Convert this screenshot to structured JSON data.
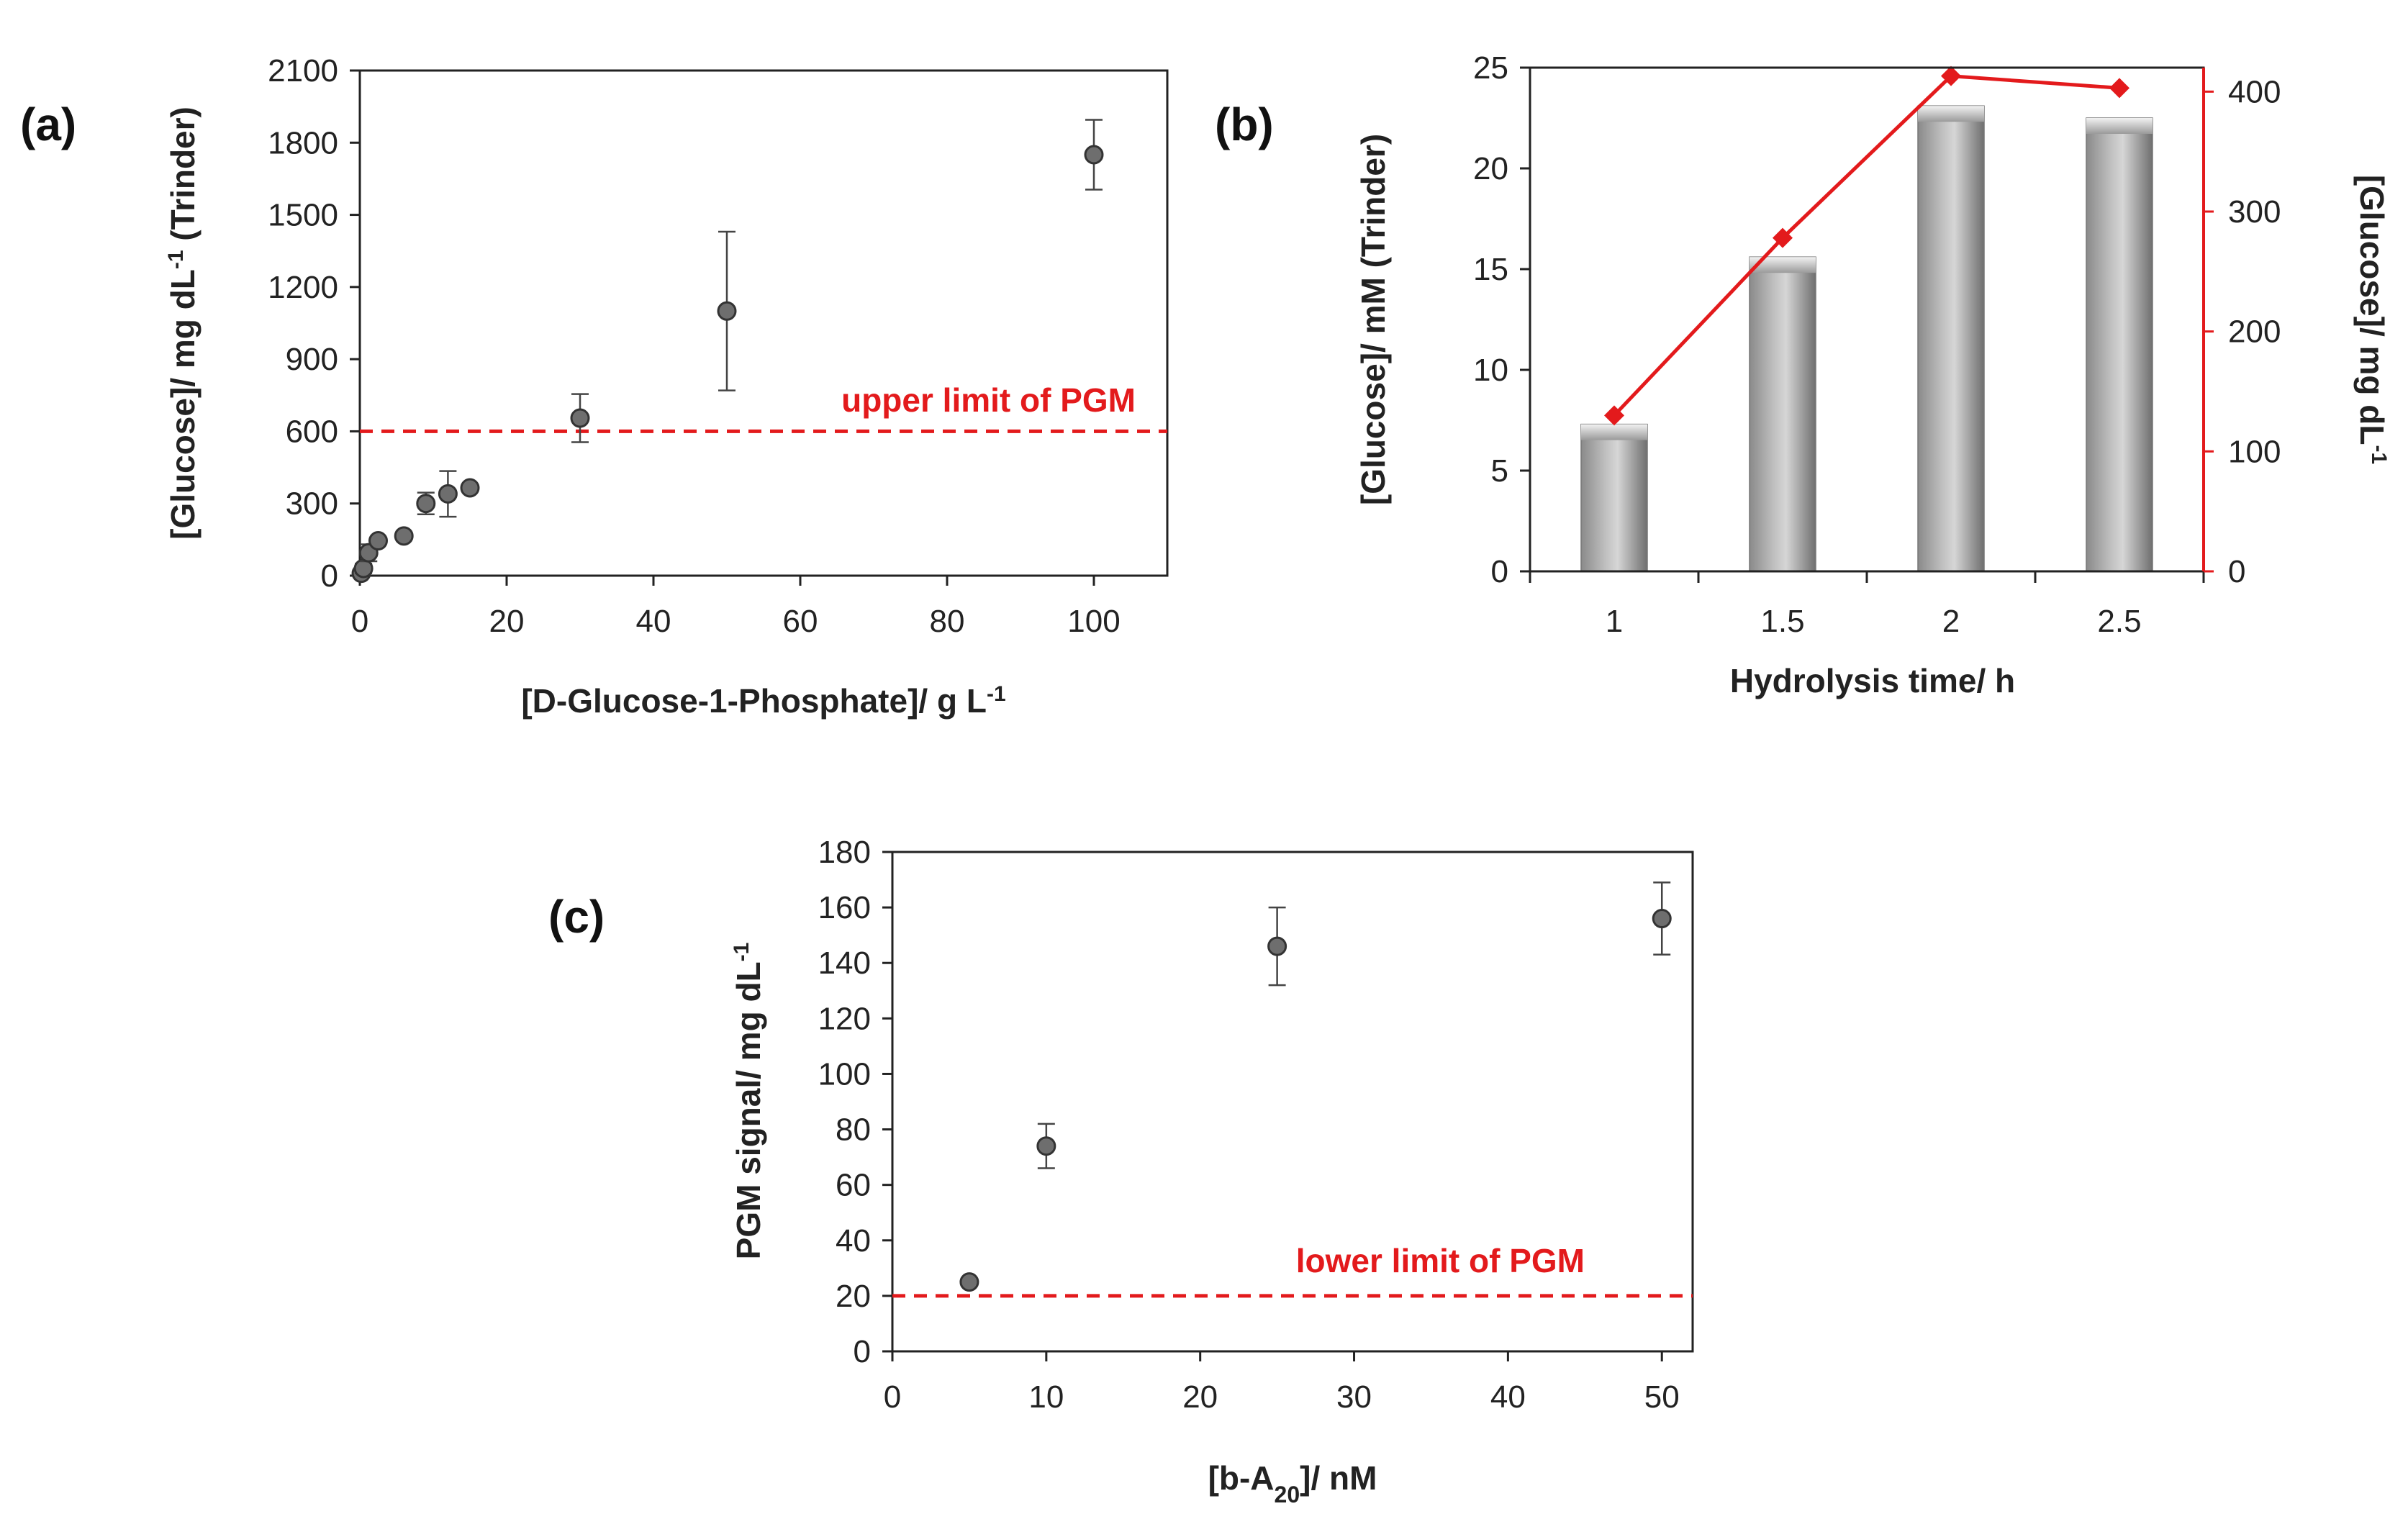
{
  "figure": {
    "colors": {
      "axis": "#222222",
      "marker": "#6e6e6e",
      "marker_edge": "#333333",
      "reference": "#e31a1c",
      "line_red": "#e31a1c",
      "bar_dark": "#8c8c8c",
      "bar_light": "#e0e0e0"
    }
  },
  "chart_data": [
    {
      "id": "a",
      "panel_label": "(a)",
      "type": "scatter",
      "title": "",
      "xlabel": "[D-Glucose-1-Phosphate]/ g L",
      "xlabel_sup": "-1",
      "ylabel": "[Glucose]/  mg dL",
      "ylabel_sup": "-1",
      "ylabel_tail": " (Trinder)",
      "xlim": [
        0,
        110
      ],
      "ylim": [
        0,
        2100
      ],
      "xticks": [
        0,
        20,
        40,
        60,
        80,
        100
      ],
      "yticks": [
        0,
        300,
        600,
        900,
        1200,
        1500,
        1800,
        2100
      ],
      "xtick_labels": [
        "0",
        "20",
        "40",
        "60",
        "80",
        "100"
      ],
      "ytick_labels": [
        "0",
        "300",
        "600",
        "900",
        "1200",
        "1500",
        "1800",
        "2100"
      ],
      "points": [
        {
          "x": 0.2,
          "y": 10,
          "err": 15
        },
        {
          "x": 0.5,
          "y": 30,
          "err": 20
        },
        {
          "x": 1.2,
          "y": 95,
          "err": 35
        },
        {
          "x": 2.5,
          "y": 145,
          "err": 0
        },
        {
          "x": 6,
          "y": 165,
          "err": 0
        },
        {
          "x": 9,
          "y": 300,
          "err": 45
        },
        {
          "x": 12,
          "y": 340,
          "err": 95
        },
        {
          "x": 15,
          "y": 365,
          "err": 0
        },
        {
          "x": 30,
          "y": 655,
          "err": 100
        },
        {
          "x": 50,
          "y": 1100,
          "err": 330
        },
        {
          "x": 100,
          "y": 1750,
          "err": 145
        }
      ],
      "reference_line": {
        "y": 600,
        "label": "upper limit of PGM",
        "style": "dashed"
      }
    },
    {
      "id": "b",
      "panel_label": "(b)",
      "type": "bar",
      "title": "",
      "xlabel": "Hydrolysis time/ h",
      "ylabel": "[Glucose]/ mM (Trinder)",
      "ylabel_right": "[Glucose]/ mg dL",
      "ylabel_right_sup": "-1",
      "categories": [
        "1",
        "1.5",
        "2",
        "2.5"
      ],
      "ylim": [
        0,
        25
      ],
      "ylim_right": [
        0,
        420
      ],
      "yticks": [
        0,
        5,
        10,
        15,
        20,
        25
      ],
      "ytick_labels": [
        "0",
        "5",
        "10",
        "15",
        "20",
        "25"
      ],
      "yticks_right": [
        0,
        100,
        200,
        300,
        400
      ],
      "ytick_labels_right": [
        "0",
        "100",
        "200",
        "300",
        "400"
      ],
      "series": [
        {
          "name": "[Glucose] mM (Trinder)",
          "type": "bar",
          "axis": "left",
          "values": [
            7.3,
            15.6,
            23.1,
            22.5
          ]
        },
        {
          "name": "[Glucose] mg dL-1",
          "type": "line",
          "axis": "right",
          "marker": "diamond",
          "values": [
            130,
            278,
            413,
            403
          ]
        }
      ]
    },
    {
      "id": "c",
      "panel_label": "(c)",
      "type": "scatter",
      "title": "",
      "xlabel": "[b-A",
      "xlabel_sub": "20",
      "xlabel_tail": "]/  nM",
      "ylabel": "PGM signal/ mg dL",
      "ylabel_sup": "-1",
      "xlim": [
        0,
        52
      ],
      "ylim": [
        0,
        180
      ],
      "xticks": [
        0,
        10,
        20,
        30,
        40,
        50
      ],
      "yticks": [
        0,
        20,
        40,
        60,
        80,
        100,
        120,
        140,
        160,
        180
      ],
      "xtick_labels": [
        "0",
        "10",
        "20",
        "30",
        "40",
        "50"
      ],
      "ytick_labels": [
        "0",
        "20",
        "40",
        "60",
        "80",
        "100",
        "120",
        "140",
        "160",
        "180"
      ],
      "points": [
        {
          "x": 5,
          "y": 25,
          "err": 0
        },
        {
          "x": 10,
          "y": 74,
          "err": 8
        },
        {
          "x": 25,
          "y": 146,
          "err": 14
        },
        {
          "x": 50,
          "y": 156,
          "err": 13
        }
      ],
      "reference_line": {
        "y": 20,
        "label": "lower limit of PGM",
        "style": "dashed"
      }
    }
  ]
}
